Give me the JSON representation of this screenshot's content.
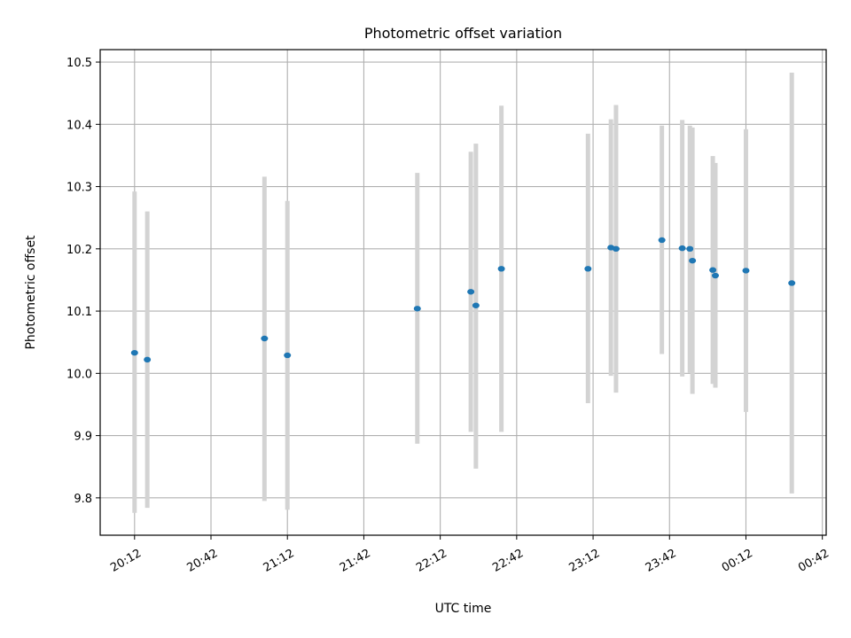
{
  "chart_data": {
    "type": "scatter",
    "title": "Photometric offset variation",
    "xlabel": "UTC time",
    "ylabel": "Photometric offset",
    "x_ticks": [
      "20:12",
      "20:42",
      "21:12",
      "21:42",
      "22:12",
      "22:42",
      "23:12",
      "23:42",
      "00:12",
      "00:42"
    ],
    "x_tick_minutes": [
      0,
      30,
      60,
      90,
      120,
      150,
      180,
      210,
      240,
      270
    ],
    "xlim_minutes": [
      -13.5,
      271.5
    ],
    "y_ticks": [
      "9.8",
      "9.9",
      "10.0",
      "10.1",
      "10.2",
      "10.3",
      "10.4",
      "10.5"
    ],
    "y_tick_values": [
      9.8,
      9.9,
      10.0,
      10.1,
      10.2,
      10.3,
      10.4,
      10.5
    ],
    "ylim": [
      9.74,
      10.52
    ],
    "grid": true,
    "point_color": "#1f77b4",
    "errorbar_color": "#d3d3d3",
    "points": [
      {
        "t": "20:12",
        "y": 10.033,
        "ylow": 9.776,
        "yhigh": 10.292
      },
      {
        "t": "20:17",
        "y": 10.022,
        "ylow": 9.784,
        "yhigh": 10.26
      },
      {
        "t": "21:03",
        "y": 10.056,
        "ylow": 9.795,
        "yhigh": 10.316
      },
      {
        "t": "21:12",
        "y": 10.029,
        "ylow": 9.781,
        "yhigh": 10.277
      },
      {
        "t": "22:03",
        "y": 10.104,
        "ylow": 9.887,
        "yhigh": 10.322
      },
      {
        "t": "22:24",
        "y": 10.131,
        "ylow": 9.906,
        "yhigh": 10.356
      },
      {
        "t": "22:26",
        "y": 10.109,
        "ylow": 9.847,
        "yhigh": 10.369
      },
      {
        "t": "22:36",
        "y": 10.168,
        "ylow": 9.906,
        "yhigh": 10.43
      },
      {
        "t": "23:10",
        "y": 10.168,
        "ylow": 9.952,
        "yhigh": 10.385
      },
      {
        "t": "23:19",
        "y": 10.202,
        "ylow": 9.996,
        "yhigh": 10.408
      },
      {
        "t": "23:21",
        "y": 10.2,
        "ylow": 9.969,
        "yhigh": 10.431
      },
      {
        "t": "23:39",
        "y": 10.214,
        "ylow": 10.031,
        "yhigh": 10.398
      },
      {
        "t": "23:47",
        "y": 10.201,
        "ylow": 9.995,
        "yhigh": 10.407
      },
      {
        "t": "23:50",
        "y": 10.2,
        "ylow": 10.001,
        "yhigh": 10.398
      },
      {
        "t": "23:51",
        "y": 10.181,
        "ylow": 9.967,
        "yhigh": 10.395
      },
      {
        "t": "23:59",
        "y": 10.166,
        "ylow": 9.983,
        "yhigh": 10.349
      },
      {
        "t": "00:00",
        "y": 10.157,
        "ylow": 9.977,
        "yhigh": 10.338
      },
      {
        "t": "00:12",
        "y": 10.165,
        "ylow": 9.938,
        "yhigh": 10.392
      },
      {
        "t": "00:30",
        "y": 10.145,
        "ylow": 9.807,
        "yhigh": 10.483
      }
    ]
  }
}
